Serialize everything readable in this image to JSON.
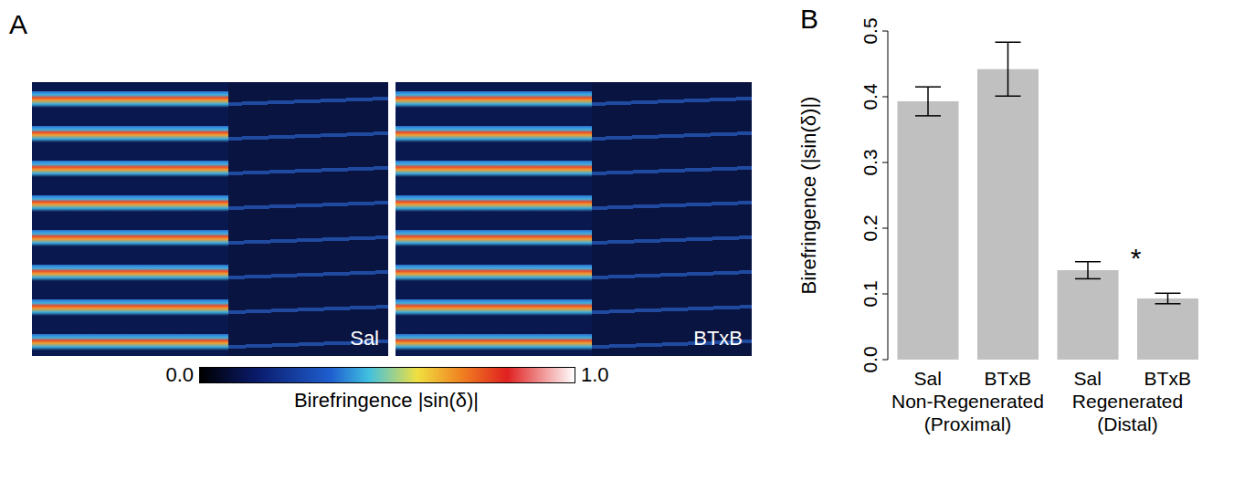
{
  "panel_a": {
    "letter": "A",
    "images": [
      {
        "label": "Sal"
      },
      {
        "label": "BTxB"
      }
    ],
    "colorbar": {
      "range": [
        0,
        1
      ],
      "ticks": [
        {
          "value": 0,
          "label": "0.0"
        },
        {
          "value": 1,
          "label": "1.0"
        }
      ],
      "label": "Birefringence |sin(δ)|"
    }
  },
  "chart_data": {
    "letter": "B",
    "type": "bar",
    "categories": [
      "Sal",
      "BTxB",
      "Sal",
      "BTxB"
    ],
    "groups": [
      "Non-Regenerated (Proximal)",
      "Regenerated (Distal)"
    ],
    "values": [
      0.393,
      0.442,
      0.136,
      0.093
    ],
    "errors": [
      0.022,
      0.041,
      0.013,
      0.008
    ],
    "color": "#c0c0c0",
    "y_label": "Birefringence (|sin(δ)|)",
    "ylim": [
      0,
      0.5
    ],
    "yticks": [
      {
        "value": 0,
        "label": "0.0"
      },
      0.1,
      0.2,
      0.3,
      0.4,
      0.5
    ],
    "grid": false,
    "annotations": [
      {
        "text": "*",
        "index": 3
      }
    ]
  }
}
